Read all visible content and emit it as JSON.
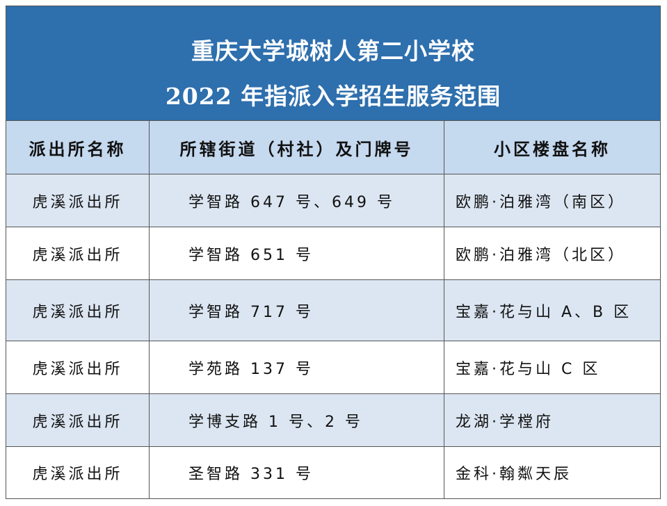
{
  "header": {
    "title": [
      "重庆大学城树人第二小学校",
      "2022 年指派入学招生服务范围"
    ]
  },
  "table": {
    "columns": [
      "派出所名称",
      "所辖街道（村社）及门牌号",
      "小区楼盘名称"
    ],
    "rows": [
      [
        "虎溪派出所",
        "学智路 647 号、649 号",
        "欧鹏·泊雅湾（南区）"
      ],
      [
        "虎溪派出所",
        "学智路 651 号",
        "欧鹏·泊雅湾（北区）"
      ],
      [
        "虎溪派出所",
        "学智路 717 号",
        "宝嘉·花与山 A、B 区"
      ],
      [
        "虎溪派出所",
        "学苑路 137 号",
        "宝嘉·花与山 C 区"
      ],
      [
        "虎溪派出所",
        "学博支路 1 号、2 号",
        "龙湖·学樘府"
      ],
      [
        "虎溪派出所",
        "圣智路 331 号",
        "金科·翰粼天辰"
      ]
    ]
  }
}
